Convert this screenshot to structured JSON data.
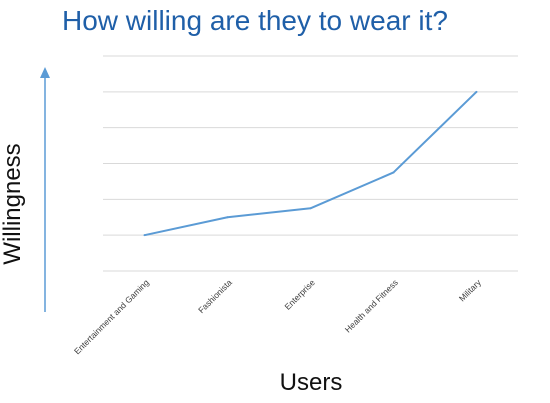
{
  "chart_data": {
    "type": "line",
    "title": "How willing are they to wear it?",
    "xlabel": "Users",
    "ylabel": "Willingness",
    "categories": [
      "Entertainment and Gaming",
      "Fashionista",
      "Enterprise",
      "Health and Fitness",
      "Military"
    ],
    "series": [
      {
        "values": [
          1,
          1.5,
          1.75,
          2.75,
          5
        ]
      }
    ],
    "ylim": [
      0,
      6
    ],
    "grid": true,
    "y_tick_labels_shown": false,
    "colors": {
      "line": "#5b9bd5",
      "arrow": "#5b9bd5",
      "title": "#1f5fa8",
      "grid": "#d9d9d9"
    }
  }
}
